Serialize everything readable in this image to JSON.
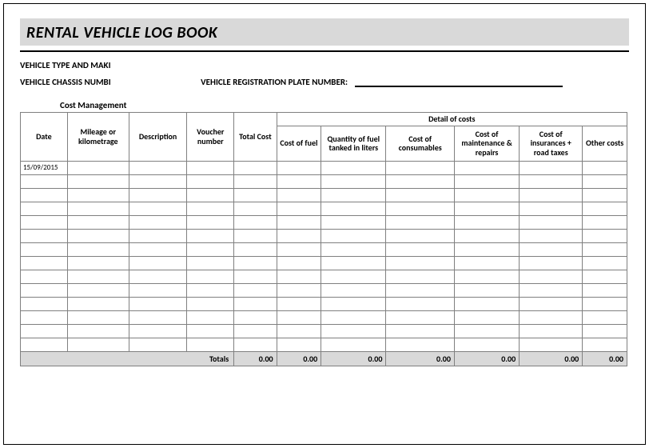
{
  "title": "RENTAL VEHICLE LOG BOOK",
  "fields": {
    "vehicle_type_make_label": "VEHICLE TYPE AND MAKI",
    "vehicle_chassis_label": "VEHICLE CHASSIS NUMBI",
    "vehicle_reg_label": "VEHICLE REGISTRATION PLATE NUMBER:"
  },
  "section_label": "Cost Management",
  "columns": {
    "date": "Date",
    "mileage": "Mileage or kilometrage",
    "description": "Description",
    "voucher": "Voucher number",
    "total_cost": "Total Cost",
    "detail_header": "Detail of costs",
    "cost_fuel": "Cost of fuel",
    "qty_fuel": "Quantity of fuel tanked in liters",
    "cost_consumables": "Cost of consumables",
    "cost_maintenance": "Cost of maintenance & repairs",
    "cost_insurance": "Cost of insurances + road taxes",
    "other_costs": "Other costs"
  },
  "col_widths": {
    "date": 55,
    "mileage": 72,
    "description": 68,
    "voucher": 55,
    "total_cost": 50,
    "cost_fuel": 52,
    "qty_fuel": 76,
    "cost_consumables": 80,
    "cost_maintenance": 76,
    "cost_insurance": 74,
    "other_costs": 52
  },
  "rows": [
    {
      "date": "15/09/2015"
    },
    {},
    {},
    {},
    {},
    {},
    {},
    {},
    {},
    {},
    {},
    {},
    {},
    {}
  ],
  "totals": {
    "label": "Totals",
    "total_cost": "0.00",
    "cost_fuel": "0.00",
    "qty_fuel": "0.00",
    "cost_consumables": "0.00",
    "cost_maintenance": "0.00",
    "cost_insurance": "0.00",
    "other_costs": "0.00"
  },
  "colors": {
    "header_bg": "#d9d9d9",
    "border": "#808080",
    "text": "#000000",
    "bg": "#ffffff"
  }
}
